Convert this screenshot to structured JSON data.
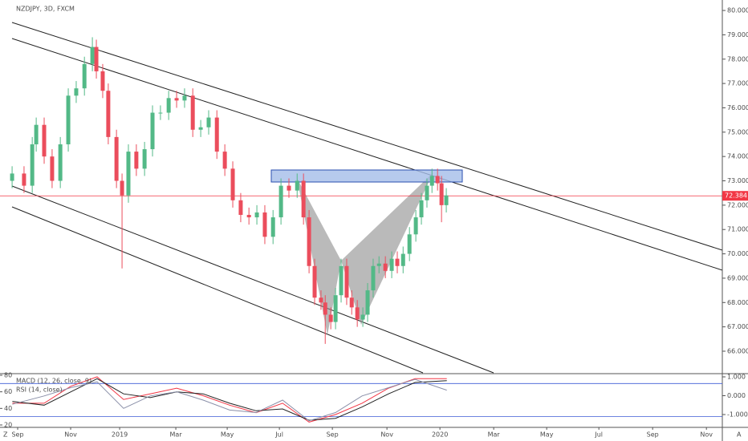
{
  "header": {
    "symbol": "NZDJPY, 3D, FXCM",
    "corner_left": "Z",
    "corner_right": "A"
  },
  "chart_data": [
    {
      "type": "candlestick",
      "x": [
        -0.21,
        0.24,
        0.55,
        0.7,
        1.0,
        1.3,
        1.61,
        1.91,
        2.21,
        2.52,
        2.82,
        2.97,
        3.21,
        3.42,
        3.73,
        3.94,
        4.18,
        4.48,
        4.79,
        5.09,
        5.39,
        5.7,
        6.0,
        6.3,
        6.61,
        6.91,
        7.21,
        7.52,
        7.82,
        8.12,
        8.42,
        8.73,
        9.03,
        9.33,
        9.64,
        9.94,
        10.24,
        10.55,
        10.79,
        11.0,
        11.21,
        11.45,
        11.61,
        11.82,
        12.0,
        12.21,
        12.42,
        12.61,
        12.82,
        13.03,
        13.21,
        13.42,
        13.64,
        13.88,
        14.12,
        14.33,
        14.55,
        14.79,
        15.03,
        15.24,
        15.45,
        15.64,
        15.85,
        16.0,
        16.18
      ],
      "open": [
        73.0,
        73.3,
        72.8,
        74.5,
        75.3,
        74.0,
        73.0,
        74.5,
        76.5,
        76.8,
        77.8,
        78.5,
        77.5,
        76.7,
        74.8,
        73.0,
        72.4,
        74.2,
        73.5,
        74.3,
        75.8,
        75.8,
        76.4,
        76.3,
        76.5,
        75.1,
        75.2,
        75.6,
        74.2,
        73.5,
        72.2,
        71.6,
        71.5,
        71.7,
        70.7,
        71.5,
        72.8,
        72.6,
        73.0,
        71.5,
        69.5,
        68.2,
        68.0,
        67.5,
        67.2,
        68.3,
        69.5,
        68.2,
        67.8,
        67.3,
        67.5,
        68.5,
        69.5,
        69.6,
        69.3,
        69.8,
        69.5,
        70.0,
        70.8,
        71.5,
        72.2,
        72.8,
        73.2,
        72.9,
        72.0
      ],
      "high": [
        73.6,
        73.6,
        74.8,
        75.6,
        75.6,
        74.3,
        74.8,
        76.8,
        77.1,
        78.1,
        78.9,
        78.8,
        77.8,
        77.0,
        75.1,
        73.3,
        74.5,
        74.5,
        74.6,
        76.1,
        76.1,
        76.7,
        76.7,
        76.8,
        76.8,
        75.5,
        75.9,
        75.9,
        74.5,
        73.8,
        72.5,
        71.9,
        72.0,
        72.0,
        71.8,
        73.1,
        73.1,
        73.3,
        73.3,
        71.8,
        69.8,
        68.5,
        68.3,
        67.8,
        68.6,
        69.8,
        69.8,
        68.5,
        68.1,
        67.8,
        68.8,
        69.8,
        69.9,
        69.9,
        70.1,
        70.1,
        70.3,
        71.1,
        71.8,
        72.5,
        73.1,
        73.5,
        73.5,
        73.2,
        72.7
      ],
      "low": [
        72.7,
        72.5,
        72.5,
        74.2,
        73.7,
        72.7,
        72.7,
        74.2,
        76.2,
        76.5,
        77.5,
        77.2,
        76.4,
        74.5,
        72.7,
        69.4,
        72.1,
        73.2,
        73.2,
        74.0,
        75.5,
        75.5,
        76.0,
        76.0,
        74.8,
        74.8,
        74.9,
        73.9,
        73.2,
        71.9,
        71.3,
        71.2,
        71.2,
        70.4,
        70.4,
        71.2,
        72.3,
        72.3,
        71.2,
        69.2,
        67.9,
        67.7,
        66.3,
        66.9,
        66.9,
        68.0,
        67.9,
        67.5,
        67.0,
        67.0,
        67.2,
        68.2,
        69.2,
        69.0,
        69.0,
        69.2,
        69.2,
        69.7,
        70.5,
        71.2,
        71.9,
        72.5,
        72.6,
        71.3,
        71.7
      ],
      "close": [
        73.3,
        72.8,
        74.5,
        75.3,
        74.0,
        73.0,
        74.5,
        76.5,
        76.8,
        77.8,
        78.5,
        77.5,
        76.7,
        74.8,
        73.0,
        72.4,
        74.2,
        73.5,
        74.3,
        75.8,
        75.8,
        76.4,
        76.3,
        76.5,
        75.1,
        75.2,
        75.6,
        74.2,
        73.5,
        72.2,
        71.6,
        71.5,
        71.7,
        70.7,
        71.5,
        72.8,
        72.6,
        73.0,
        71.5,
        69.5,
        68.2,
        68.0,
        67.5,
        67.2,
        68.3,
        69.5,
        68.2,
        67.8,
        67.3,
        67.5,
        68.5,
        69.5,
        69.6,
        69.3,
        69.8,
        69.5,
        70.0,
        70.8,
        71.5,
        72.2,
        72.8,
        73.2,
        72.9,
        72.0,
        72.4
      ],
      "up_color": "#53b987",
      "down_color": "#eb4d5c",
      "last_price": 72.384,
      "last_price_color": "#f23645",
      "xlim": [
        -0.667,
        26.6
      ],
      "xticks": [
        {
          "value": 0,
          "label": "Sep"
        },
        {
          "value": 2,
          "label": "Nov"
        },
        {
          "value": 3.85,
          "label": "2019"
        },
        {
          "value": 5.97,
          "label": "Mar"
        },
        {
          "value": 7.91,
          "label": "May"
        },
        {
          "value": 9.88,
          "label": "Jul"
        },
        {
          "value": 11.88,
          "label": "Sep"
        },
        {
          "value": 13.94,
          "label": "Nov"
        },
        {
          "value": 15.94,
          "label": "2020"
        },
        {
          "value": 17.97,
          "label": "Mar"
        },
        {
          "value": 19.97,
          "label": "May"
        },
        {
          "value": 21.94,
          "label": "Jul"
        },
        {
          "value": 23.97,
          "label": "Sep"
        },
        {
          "value": 26,
          "label": "Nov"
        }
      ],
      "ylim": [
        65.11,
        80.43
      ],
      "yticks": [
        {
          "value": 66,
          "label": "66.000"
        },
        {
          "value": 67,
          "label": "67.000"
        },
        {
          "value": 68,
          "label": "68.000"
        },
        {
          "value": 69,
          "label": "69.000"
        },
        {
          "value": 70,
          "label": "70.000"
        },
        {
          "value": 71,
          "label": "71.000"
        },
        {
          "value": 72,
          "label": "72.000"
        },
        {
          "value": 73,
          "label": "73.000"
        },
        {
          "value": 74,
          "label": "74.000"
        },
        {
          "value": 75,
          "label": "75.000"
        },
        {
          "value": 76,
          "label": "76.000"
        },
        {
          "value": 77,
          "label": "77.000"
        },
        {
          "value": 78,
          "label": "78.000"
        },
        {
          "value": 79,
          "label": "79.000"
        },
        {
          "value": 80,
          "label": "80.000"
        }
      ]
    },
    {
      "type": "line",
      "x": [
        -0.2,
        1,
        2,
        3,
        4,
        5,
        6,
        7,
        8,
        9,
        10,
        11,
        12,
        13,
        14,
        15,
        16.2
      ],
      "series": [
        {
          "name": "MACD (12, 26, close, 9)",
          "color": "#f23645",
          "axis": "y2",
          "values": [
            -0.4,
            -0.4,
            0.5,
            1.0,
            -0.2,
            0.1,
            0.4,
            0.0,
            -0.5,
            -0.9,
            -0.4,
            -1.4,
            -1.0,
            -0.4,
            0.4,
            0.9,
            0.9
          ]
        },
        {
          "color": "#222222",
          "axis": "y2",
          "values": [
            -0.3,
            -0.5,
            0.2,
            0.9,
            0.1,
            -0.1,
            0.2,
            0.1,
            -0.4,
            -0.8,
            -0.7,
            -1.3,
            -1.2,
            -0.6,
            0.1,
            0.7,
            0.8
          ]
        },
        {
          "name": "RSI (14, close)",
          "color": "#8a8fa8",
          "values": [
            45,
            55,
            65,
            72,
            40,
            55,
            60,
            50,
            38,
            35,
            50,
            25,
            35,
            55,
            65,
            75,
            62
          ]
        }
      ],
      "bands": [
        70,
        30
      ],
      "band_color": "#3d5bd6",
      "ylim": [
        17.1,
        81.9
      ],
      "yticks": [
        80,
        60,
        40,
        20
      ],
      "y2lim": [
        -1.68,
        1.17
      ],
      "y2ticks": [
        {
          "value": 1,
          "label": "1.000"
        },
        {
          "value": 0,
          "label": "0.000"
        },
        {
          "value": -1,
          "label": "-1.000"
        }
      ]
    }
  ]
}
